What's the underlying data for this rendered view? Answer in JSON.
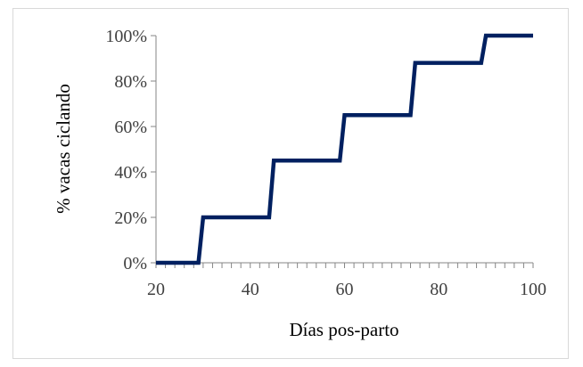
{
  "chart_data": {
    "type": "line",
    "xlabel": "Días pos-parto",
    "ylabel": "% vacas ciclando",
    "xlim": [
      20,
      100
    ],
    "ylim": [
      0,
      100
    ],
    "x_ticks": [
      20,
      40,
      60,
      80,
      100
    ],
    "y_ticks": [
      "0%",
      "20%",
      "40%",
      "60%",
      "80%",
      "100%"
    ],
    "y_tick_values": [
      0,
      20,
      40,
      60,
      80,
      100
    ],
    "grid": false,
    "legend": "none",
    "series": [
      {
        "x": [
          20,
          29,
          30,
          44,
          45,
          59,
          60,
          74,
          75,
          89,
          90,
          100
        ],
        "y": [
          0,
          0,
          20,
          20,
          45,
          45,
          65,
          65,
          88,
          88,
          100,
          100
        ]
      }
    ],
    "colors": {
      "line": "#002060",
      "axis": "#868686",
      "text": "#404040"
    }
  }
}
